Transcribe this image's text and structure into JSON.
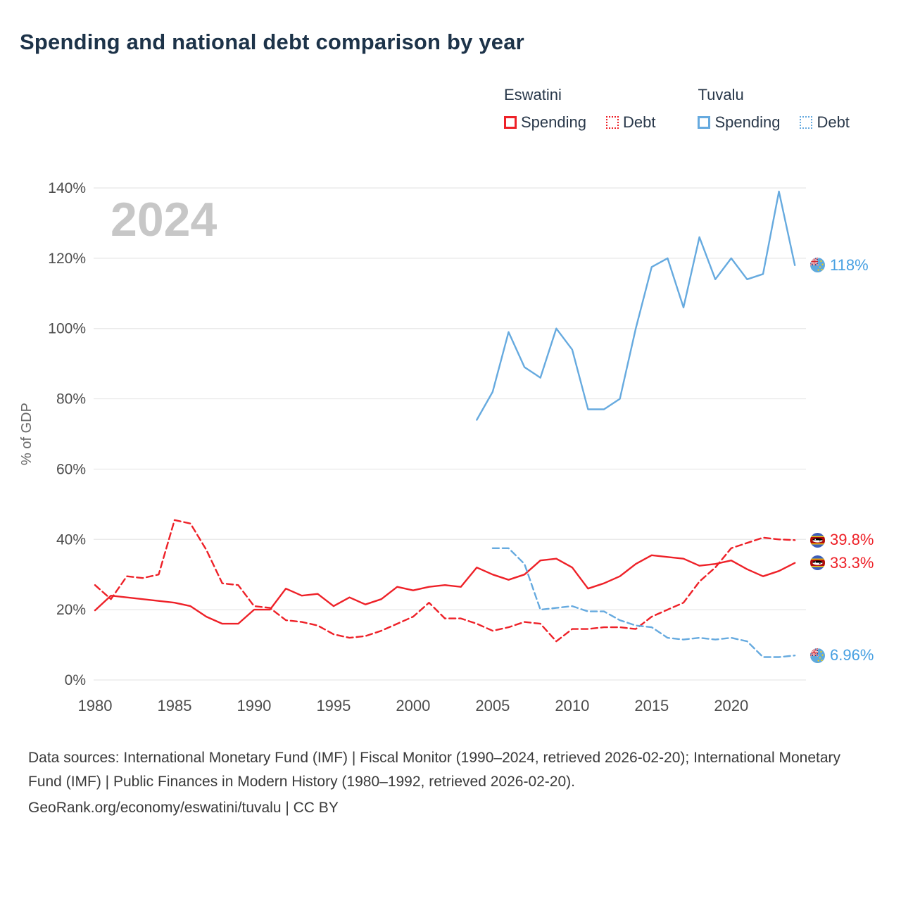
{
  "page": {
    "title": "Spending and national debt comparison by year",
    "watermark": "2024"
  },
  "colors": {
    "eswatini": "#ee2128",
    "tuvalu": "#66aadf",
    "title_text": "#1d3349",
    "grid": "#e7e7e7",
    "axis_text": "#4d4d4d",
    "watermark": "#c7c7c7",
    "end_label_red": "#ee2128",
    "end_label_blue": "#47a0e2"
  },
  "legend": {
    "groups": [
      {
        "country": "Eswatini",
        "color": "#ee2128",
        "items": [
          {
            "label": "Spending",
            "style": "solid"
          },
          {
            "label": "Debt",
            "style": "dashed"
          }
        ]
      },
      {
        "country": "Tuvalu",
        "color": "#66aadf",
        "items": [
          {
            "label": "Spending",
            "style": "solid"
          },
          {
            "label": "Debt",
            "style": "dashed"
          }
        ]
      }
    ]
  },
  "chart_data": {
    "type": "line",
    "title": "Spending and national debt comparison by year",
    "xlabel": "",
    "ylabel": "% of GDP",
    "xlim": [
      1980,
      2024.7
    ],
    "ylim": [
      0,
      140
    ],
    "yticks": [
      0,
      20,
      40,
      60,
      80,
      100,
      120,
      140
    ],
    "xticks": [
      1980,
      1985,
      1990,
      1995,
      2000,
      2005,
      2010,
      2015,
      2020
    ],
    "grid": "horizontal",
    "legend_position": "top-right",
    "series": [
      {
        "name": "Eswatini Spending",
        "color": "#ee2128",
        "dash": "solid",
        "points": [
          [
            1980,
            19.8
          ],
          [
            1981,
            24
          ],
          [
            1982,
            23.5
          ],
          [
            1983,
            23
          ],
          [
            1984,
            22.5
          ],
          [
            1985,
            22
          ],
          [
            1986,
            21
          ],
          [
            1987,
            18
          ],
          [
            1988,
            16
          ],
          [
            1989,
            16
          ],
          [
            1990,
            20
          ],
          [
            1991,
            20
          ],
          [
            1992,
            26
          ],
          [
            1993,
            24
          ],
          [
            1994,
            24.5
          ],
          [
            1995,
            21
          ],
          [
            1996,
            23.5
          ],
          [
            1997,
            21.5
          ],
          [
            1998,
            23
          ],
          [
            1999,
            26.5
          ],
          [
            2000,
            25.5
          ],
          [
            2001,
            26.5
          ],
          [
            2002,
            27
          ],
          [
            2003,
            26.5
          ],
          [
            2004,
            32
          ],
          [
            2005,
            30
          ],
          [
            2006,
            28.5
          ],
          [
            2007,
            30
          ],
          [
            2008,
            34
          ],
          [
            2009,
            34.5
          ],
          [
            2010,
            32
          ],
          [
            2011,
            26
          ],
          [
            2012,
            27.5
          ],
          [
            2013,
            29.5
          ],
          [
            2014,
            33
          ],
          [
            2015,
            35.5
          ],
          [
            2016,
            35
          ],
          [
            2017,
            34.5
          ],
          [
            2018,
            32.5
          ],
          [
            2019,
            33
          ],
          [
            2020,
            34
          ],
          [
            2021,
            31.5
          ],
          [
            2022,
            29.5
          ],
          [
            2023,
            31
          ],
          [
            2024,
            33.3
          ]
        ]
      },
      {
        "name": "Eswatini Debt",
        "color": "#ee2128",
        "dash": "dashed",
        "points": [
          [
            1980,
            27
          ],
          [
            1981,
            23
          ],
          [
            1982,
            29.5
          ],
          [
            1983,
            29
          ],
          [
            1984,
            30
          ],
          [
            1985,
            45.5
          ],
          [
            1986,
            44.5
          ],
          [
            1987,
            37
          ],
          [
            1988,
            27.5
          ],
          [
            1989,
            27
          ],
          [
            1990,
            21
          ],
          [
            1991,
            20.5
          ],
          [
            1992,
            17
          ],
          [
            1993,
            16.5
          ],
          [
            1994,
            15.5
          ],
          [
            1995,
            13
          ],
          [
            1996,
            12
          ],
          [
            1997,
            12.5
          ],
          [
            1998,
            14
          ],
          [
            1999,
            16
          ],
          [
            2000,
            18
          ],
          [
            2001,
            22
          ],
          [
            2002,
            17.5
          ],
          [
            2003,
            17.5
          ],
          [
            2004,
            16
          ],
          [
            2005,
            14
          ],
          [
            2006,
            15
          ],
          [
            2007,
            16.5
          ],
          [
            2008,
            16
          ],
          [
            2009,
            11
          ],
          [
            2010,
            14.5
          ],
          [
            2011,
            14.5
          ],
          [
            2012,
            15
          ],
          [
            2013,
            15
          ],
          [
            2014,
            14.5
          ],
          [
            2015,
            18
          ],
          [
            2016,
            20
          ],
          [
            2017,
            22
          ],
          [
            2018,
            28
          ],
          [
            2019,
            32
          ],
          [
            2020,
            37.5
          ],
          [
            2021,
            39
          ],
          [
            2022,
            40.5
          ],
          [
            2023,
            40
          ],
          [
            2024,
            39.8
          ]
        ]
      },
      {
        "name": "Tuvalu Spending",
        "color": "#66aadf",
        "dash": "solid",
        "points": [
          [
            2004,
            74
          ],
          [
            2005,
            82
          ],
          [
            2006,
            99
          ],
          [
            2007,
            89
          ],
          [
            2008,
            86
          ],
          [
            2009,
            100
          ],
          [
            2010,
            94
          ],
          [
            2011,
            77
          ],
          [
            2012,
            77
          ],
          [
            2013,
            80
          ],
          [
            2014,
            100
          ],
          [
            2015,
            117.5
          ],
          [
            2016,
            120
          ],
          [
            2017,
            106
          ],
          [
            2018,
            126
          ],
          [
            2019,
            114
          ],
          [
            2020,
            120
          ],
          [
            2021,
            114
          ],
          [
            2022,
            115.5
          ],
          [
            2023,
            139
          ],
          [
            2024,
            118
          ]
        ]
      },
      {
        "name": "Tuvalu Debt",
        "color": "#66aadf",
        "dash": "dashed",
        "points": [
          [
            2005,
            37.5
          ],
          [
            2006,
            37.5
          ],
          [
            2007,
            33
          ],
          [
            2008,
            20
          ],
          [
            2009,
            20.5
          ],
          [
            2010,
            21
          ],
          [
            2011,
            19.5
          ],
          [
            2012,
            19.5
          ],
          [
            2013,
            17
          ],
          [
            2014,
            15.5
          ],
          [
            2015,
            15
          ],
          [
            2016,
            12
          ],
          [
            2017,
            11.5
          ],
          [
            2018,
            12
          ],
          [
            2019,
            11.5
          ],
          [
            2020,
            12
          ],
          [
            2021,
            11
          ],
          [
            2022,
            6.5
          ],
          [
            2023,
            6.5
          ],
          [
            2024,
            6.96
          ]
        ]
      }
    ]
  },
  "end_labels": [
    {
      "value": 118,
      "text": "118%",
      "country": "Tuvalu",
      "color": "#47a0e2"
    },
    {
      "value": 39.8,
      "text": "39.8%",
      "country": "Eswatini",
      "color": "#ee2128"
    },
    {
      "value": 33.3,
      "text": "33.3%",
      "country": "Eswatini",
      "color": "#ee2128"
    },
    {
      "value": 6.96,
      "text": "6.96%",
      "country": "Tuvalu",
      "color": "#47a0e2"
    }
  ],
  "footer": {
    "sources": "Data sources: International Monetary Fund (IMF) | Fiscal Monitor (1990–2024, retrieved 2026-02-20); International Monetary Fund (IMF) | Public Finances in Modern History (1980–1992, retrieved 2026-02-20).",
    "attribution": "GeoRank.org/economy/eswatini/tuvalu | CC BY"
  }
}
